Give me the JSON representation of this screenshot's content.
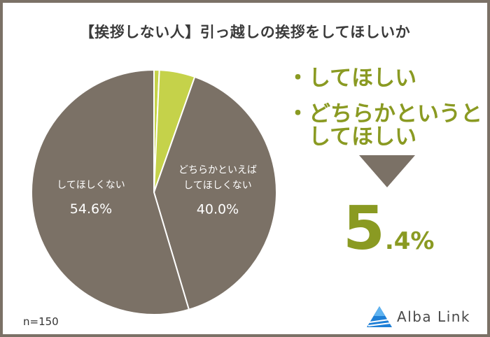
{
  "title": "【挨拶しない人】引っ越しの挨拶をしてほしいか",
  "callout": {
    "line1": "・してほしい",
    "line2": "・どちらかというと",
    "line3": "　してほしい",
    "big_number": "5",
    "big_decimal": ".4%"
  },
  "sample_size": "n=150",
  "logo_text": "Alba Link",
  "colors": {
    "brown": "#7b7166",
    "green": "#c5d24a",
    "accent_text": "#8a9a22"
  },
  "chart_data": {
    "type": "pie",
    "title": "【挨拶しない人】引っ越しの挨拶をしてほしいか",
    "slices": [
      {
        "label": "してほしい",
        "value": 0.7,
        "color": "#c5d24a",
        "label_text": "",
        "value_text": ""
      },
      {
        "label": "どちらかというとしてほしい",
        "value": 4.7,
        "color": "#c5d24a",
        "label_text": "",
        "value_text": ""
      },
      {
        "label": "どちらかといえばしてほしくない",
        "value": 40.0,
        "color": "#7b7166",
        "label_text": "どちらかといえば\nしてほしくない",
        "value_text": "40.0%"
      },
      {
        "label": "してほしくない",
        "value": 54.6,
        "color": "#7b7166",
        "label_text": "してほしくない",
        "value_text": "54.6%"
      }
    ]
  }
}
